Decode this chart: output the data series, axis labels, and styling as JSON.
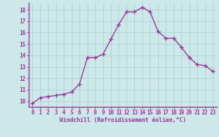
{
  "x": [
    0,
    1,
    2,
    3,
    4,
    5,
    6,
    7,
    8,
    9,
    10,
    11,
    12,
    13,
    14,
    15,
    16,
    17,
    18,
    19,
    20,
    21,
    22,
    23
  ],
  "y": [
    9.8,
    10.3,
    10.4,
    10.5,
    10.6,
    10.8,
    11.5,
    13.8,
    13.8,
    14.1,
    15.4,
    16.7,
    17.8,
    17.8,
    18.2,
    17.8,
    16.1,
    15.5,
    15.5,
    14.7,
    13.8,
    13.2,
    13.1,
    12.6
  ],
  "line_color": "#993399",
  "marker": "+",
  "marker_size": 4,
  "background_color": "#cce8e8",
  "grid_color": "#aacccc",
  "xlabel": "Windchill (Refroidissement éolien,°C)",
  "xlabel_color": "#993399",
  "tick_color": "#993399",
  "ylim": [
    9.5,
    18.6
  ],
  "xlim": [
    -0.5,
    23.5
  ],
  "yticks": [
    10,
    11,
    12,
    13,
    14,
    15,
    16,
    17,
    18
  ],
  "xticks": [
    0,
    1,
    2,
    3,
    4,
    5,
    6,
    7,
    8,
    9,
    10,
    11,
    12,
    13,
    14,
    15,
    16,
    17,
    18,
    19,
    20,
    21,
    22,
    23
  ],
  "line_width": 1.0,
  "marker_color": "#993399",
  "spine_color": "#993399",
  "tick_fontsize": 5.5,
  "xlabel_fontsize": 6.0
}
